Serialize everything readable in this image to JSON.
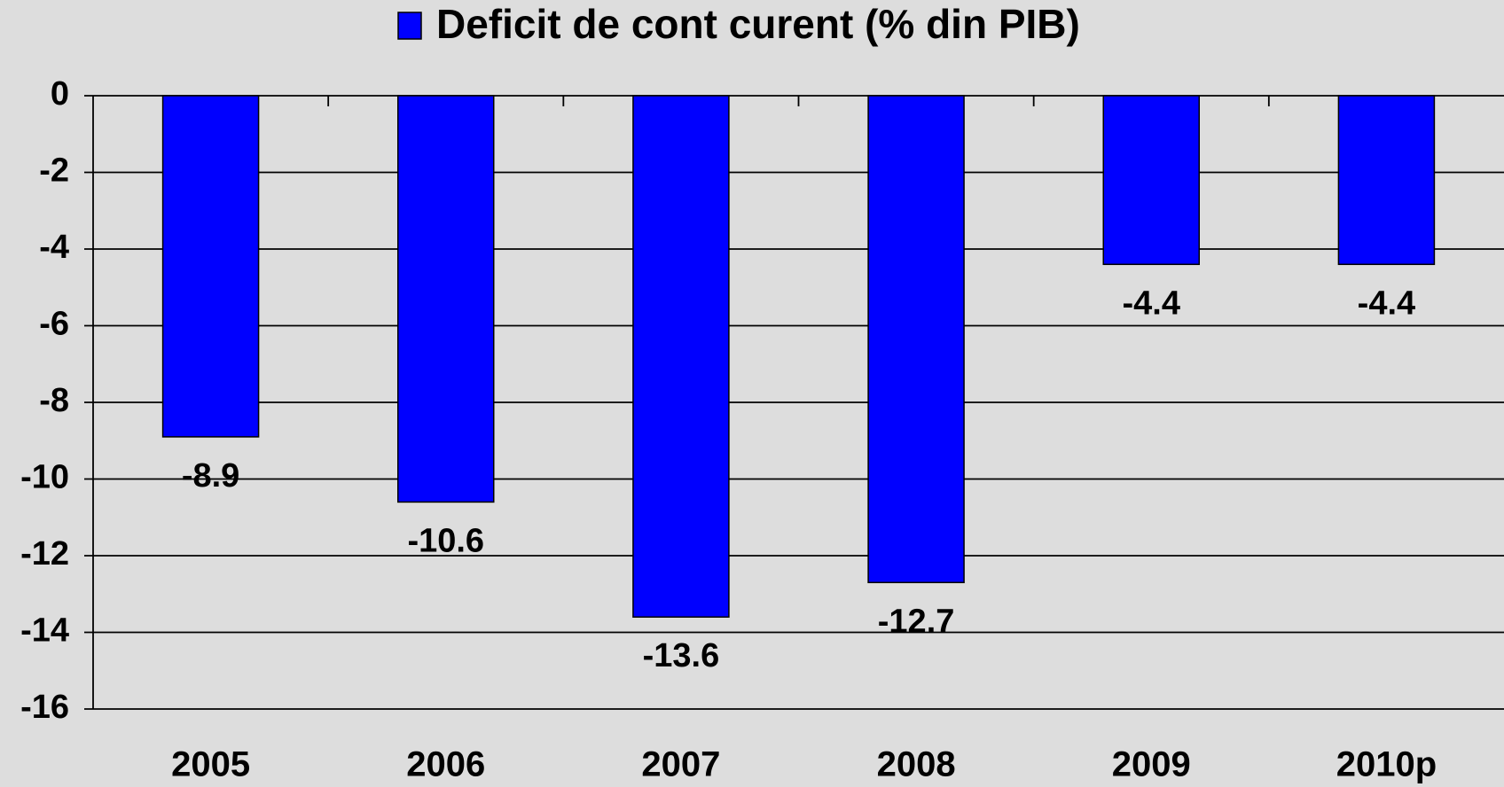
{
  "chart_data": {
    "type": "bar",
    "categories": [
      "2005",
      "2006",
      "2007",
      "2008",
      "2009",
      "2010p"
    ],
    "series": [
      {
        "name": "Deficit de cont curent (% din PIB)",
        "color": "#0000ff",
        "values": [
          -8.9,
          -10.6,
          -13.6,
          -12.7,
          -4.4,
          -4.4
        ]
      }
    ],
    "ylim": [
      -16,
      0
    ],
    "yticks": [
      0,
      -2,
      -4,
      -6,
      -8,
      -10,
      -12,
      -14,
      -16
    ],
    "grid": true
  }
}
